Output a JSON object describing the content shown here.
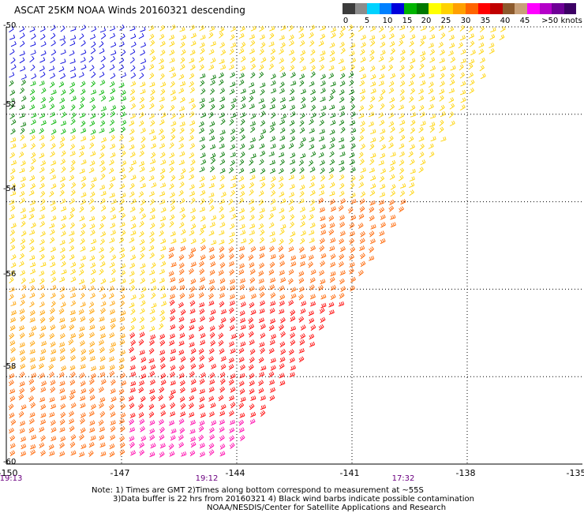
{
  "title": "ASCAT 25KM NOAA Winds 20160321 descending",
  "legend": {
    "labels": [
      "0",
      "5",
      "10",
      "15",
      "20",
      "25",
      "30",
      "35",
      "40",
      "45",
      ">50 knots"
    ],
    "colors": [
      "#3c3c3c",
      "#8c8c8c",
      "#00d2ff",
      "#0080ff",
      "#0000dc",
      "#00b400",
      "#007800",
      "#ffff00",
      "#ffd200",
      "#ffa000",
      "#ff6400",
      "#ff0000",
      "#c00000",
      "#8c5a2d",
      "#c8a078",
      "#ff00ff",
      "#b400c8",
      "#6e0096",
      "#3c0064"
    ]
  },
  "map": {
    "lon_ticks": [
      "-150",
      "-147",
      "-144",
      "-141",
      "-138",
      "-135"
    ],
    "lat_ticks": [
      "-50",
      "-52",
      "-54",
      "-56",
      "-58",
      "-60"
    ],
    "pass_times": [
      "19:13",
      "19:12",
      "17:32"
    ],
    "lon_range": [
      -150,
      -135
    ],
    "lat_range": [
      -60,
      -50
    ]
  },
  "notes": {
    "line1": "Note: 1) Times are GMT 2)Times along bottom correspond to measurement at ~55S",
    "line2": "3)Data buffer is 22 hrs from 20160321 4) Black wind barbs indicate possible contamination",
    "line3": "NOAA/NESDIS/Center for Satellite Applications and Research"
  }
}
